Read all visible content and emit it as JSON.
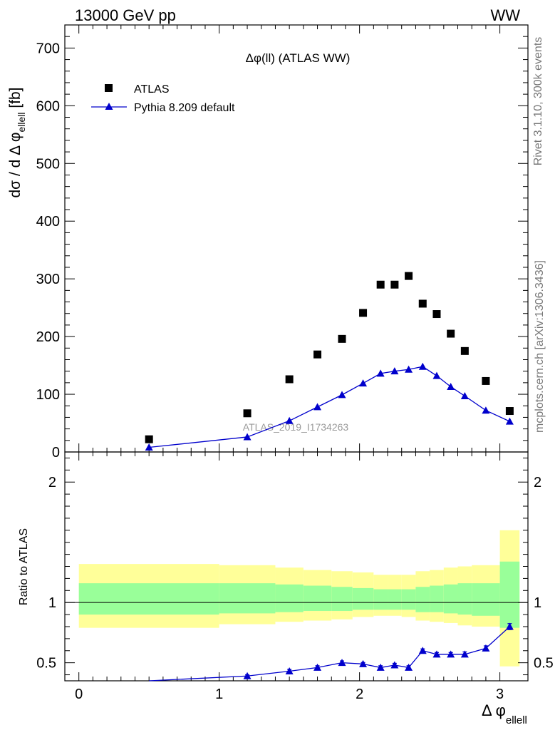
{
  "header": {
    "left": "13000 GeV pp",
    "right": "WW"
  },
  "side": {
    "rivet": "Rivet 3.1.10,  300k events",
    "mcplots": "mcplots.cern.ch [arXiv:1306.3436]"
  },
  "chart_data": [
    {
      "type": "scatter",
      "title": "Δφ(ll) (ATLAS WW)",
      "watermark": "ATLAS_2019_I1734263",
      "ylabel": "dσ / d Δ φ_ellell [fb]",
      "ylabel_main": "dσ / d Δ φ",
      "ylabel_sub": "ellell",
      "ylabel_unit": "[fb]",
      "xlim": [
        -0.1,
        3.2
      ],
      "ylim": [
        0,
        740
      ],
      "yticks": [
        0,
        100,
        200,
        300,
        400,
        500,
        600,
        700
      ],
      "legend_position": "top-left",
      "series": [
        {
          "name": "ATLAS",
          "marker": "square",
          "color": "#000000",
          "x": [
            0.5,
            1.2,
            1.5,
            1.7,
            1.875,
            2.025,
            2.15,
            2.25,
            2.35,
            2.45,
            2.55,
            2.65,
            2.75,
            2.9,
            3.07
          ],
          "y": [
            22,
            67,
            126,
            169,
            196,
            241,
            290,
            290,
            305,
            257,
            239,
            205,
            175,
            123,
            71
          ]
        },
        {
          "name": "Pythia 8.209 default",
          "marker": "triangle",
          "color": "#0000cc",
          "x": [
            0.5,
            1.2,
            1.5,
            1.7,
            1.875,
            2.025,
            2.15,
            2.25,
            2.35,
            2.45,
            2.55,
            2.65,
            2.75,
            2.9,
            3.07
          ],
          "y": [
            8,
            26,
            54,
            78,
            99,
            119,
            136,
            140,
            143,
            148,
            132,
            113,
            97,
            72,
            53
          ]
        }
      ]
    },
    {
      "type": "line",
      "ylabel": "Ratio to ATLAS",
      "xlabel": "Δ φ_ellell",
      "xlabel_main": "Δ φ",
      "xlabel_sub": "ellell",
      "xlim": [
        -0.1,
        3.2
      ],
      "ylim": [
        0.35,
        2.25
      ],
      "yticks": [
        0.5,
        1,
        2
      ],
      "ytick_labels": [
        "0.5",
        "1",
        "2"
      ],
      "xticks": [
        0,
        1,
        2,
        3
      ],
      "xtick_labels": [
        "0",
        "1",
        "2",
        "3"
      ],
      "reference_line": 1,
      "bands": {
        "edges": [
          0,
          1,
          1.4,
          1.6,
          1.8,
          1.95,
          2.1,
          2.2,
          2.3,
          2.4,
          2.5,
          2.6,
          2.7,
          2.8,
          3.0,
          3.14
        ],
        "yellow_low": [
          0.79,
          0.82,
          0.84,
          0.85,
          0.86,
          0.88,
          0.89,
          0.89,
          0.88,
          0.85,
          0.84,
          0.83,
          0.81,
          0.8,
          0.47
        ],
        "yellow_high": [
          1.32,
          1.31,
          1.29,
          1.27,
          1.26,
          1.25,
          1.23,
          1.23,
          1.23,
          1.26,
          1.27,
          1.29,
          1.3,
          1.31,
          1.6
        ],
        "green_low": [
          0.9,
          0.91,
          0.92,
          0.93,
          0.93,
          0.94,
          0.94,
          0.94,
          0.94,
          0.92,
          0.92,
          0.91,
          0.9,
          0.89,
          0.79
        ],
        "green_high": [
          1.16,
          1.16,
          1.15,
          1.14,
          1.13,
          1.12,
          1.11,
          1.11,
          1.11,
          1.13,
          1.14,
          1.15,
          1.16,
          1.16,
          1.34
        ]
      },
      "series": [
        {
          "name": "Pythia 8.209 default / ATLAS",
          "color": "#0000cc",
          "x": [
            0.5,
            1.2,
            1.5,
            1.7,
            1.875,
            2.025,
            2.15,
            2.25,
            2.35,
            2.45,
            2.55,
            2.65,
            2.75,
            2.9,
            3.07
          ],
          "y": [
            0.35,
            0.39,
            0.43,
            0.46,
            0.5,
            0.49,
            0.46,
            0.48,
            0.46,
            0.6,
            0.57,
            0.57,
            0.57,
            0.62,
            0.8
          ],
          "err": [
            0,
            0.01,
            0.015,
            0.015,
            0.015,
            0.012,
            0.015,
            0.015,
            0.015,
            0.015,
            0.015,
            0.015,
            0.02,
            0.02,
            0.025
          ]
        }
      ]
    }
  ]
}
